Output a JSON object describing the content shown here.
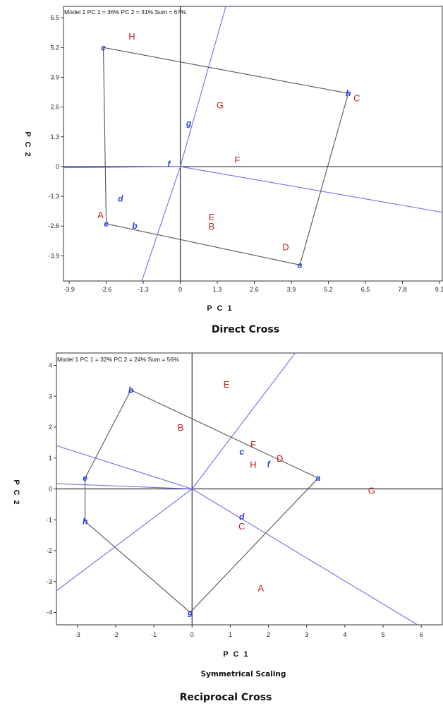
{
  "chart_data": [
    {
      "type": "scatter",
      "header": "Model 1 PC 1 = 36% PC 2 = 31% Sum = 67%",
      "xlabel": "P C 1",
      "ylabel": "P C 2",
      "caption": "Direct Cross",
      "subtitle": "",
      "xlim": [
        -4.1,
        9.2
      ],
      "ylim": [
        -5.0,
        7.0
      ],
      "xticks": [
        "-3.9",
        "-2.6",
        "-1.3",
        "0",
        "1.3",
        "2.6",
        "3.9",
        "5.2",
        "6.5",
        "7.8",
        "9.1"
      ],
      "yticks": [
        "6.5",
        "5.2",
        "3.9",
        "2.6",
        "1.3",
        "0",
        "-1.3",
        "-2.6",
        "-3.9"
      ],
      "series": [
        {
          "points": [
            {
              "label": "H",
              "x": -1.7,
              "y": 5.7
            },
            {
              "label": "C",
              "x": 6.2,
              "y": 3.0
            },
            {
              "label": "G",
              "x": 1.4,
              "y": 2.7
            },
            {
              "label": "F",
              "x": 2.0,
              "y": 0.3
            },
            {
              "label": "A",
              "x": -2.8,
              "y": -2.1
            },
            {
              "label": "E",
              "x": 1.1,
              "y": -2.2
            },
            {
              "label": "B",
              "x": 1.1,
              "y": -2.6
            },
            {
              "label": "D",
              "x": 3.7,
              "y": -3.5
            }
          ]
        },
        {
          "points": [
            {
              "label": "c",
              "x": -2.7,
              "y": 5.2
            },
            {
              "label": "h",
              "x": 5.9,
              "y": 3.2
            },
            {
              "label": "g",
              "x": 0.3,
              "y": 1.9
            },
            {
              "label": "f",
              "x": -0.4,
              "y": 0.1
            },
            {
              "label": "d",
              "x": -2.1,
              "y": -1.4
            },
            {
              "label": "e",
              "x": -2.6,
              "y": -2.5
            },
            {
              "label": "b",
              "x": -1.6,
              "y": -2.6
            },
            {
              "label": "a",
              "x": 4.2,
              "y": -4.3
            }
          ]
        }
      ],
      "polygon": [
        "c",
        "h",
        "a",
        "e",
        "c"
      ],
      "rays": [
        {
          "from": [
            0,
            0
          ],
          "to": [
            -4.1,
            -0.05
          ]
        },
        {
          "from": [
            0,
            0
          ],
          "to": [
            9.2,
            -2.0
          ]
        },
        {
          "from": [
            0,
            0
          ],
          "to": [
            1.6,
            7.0
          ]
        },
        {
          "from": [
            0,
            0
          ],
          "to": [
            -1.35,
            -5.0
          ]
        }
      ]
    },
    {
      "type": "scatter",
      "header": "Model 1 PC 1 = 32% PC 2 = 24% Sum = 56%",
      "xlabel": "P C 1",
      "ylabel": "P C 2",
      "caption": "Reciprocal Cross",
      "subtitle": "Symmetrical Scaling",
      "xlim": [
        -3.55,
        6.55
      ],
      "ylim": [
        -4.4,
        4.4
      ],
      "xticks": [
        "-3",
        "-2",
        "-1",
        "0",
        "1",
        "2",
        "3",
        "4",
        "5",
        "6"
      ],
      "yticks": [
        "4",
        "3",
        "2",
        "1",
        "0",
        "-1",
        "-2",
        "-3",
        "-4"
      ],
      "series": [
        {
          "points": [
            {
              "label": "E",
              "x": 0.9,
              "y": 3.4
            },
            {
              "label": "B",
              "x": -0.3,
              "y": 2.0
            },
            {
              "label": "F",
              "x": 1.6,
              "y": 1.45
            },
            {
              "label": "D",
              "x": 2.3,
              "y": 1.0
            },
            {
              "label": "H",
              "x": 1.6,
              "y": 0.8
            },
            {
              "label": "G",
              "x": 4.7,
              "y": -0.05
            },
            {
              "label": "C",
              "x": 1.3,
              "y": -1.2
            },
            {
              "label": "A",
              "x": 1.8,
              "y": -3.2
            }
          ]
        },
        {
          "points": [
            {
              "label": "b",
              "x": -1.6,
              "y": 3.2
            },
            {
              "label": "c",
              "x": 1.3,
              "y": 1.2
            },
            {
              "label": "f",
              "x": 2.0,
              "y": 0.8
            },
            {
              "label": "a",
              "x": 3.3,
              "y": 0.35
            },
            {
              "label": "e",
              "x": -2.8,
              "y": 0.35
            },
            {
              "label": "d",
              "x": 1.3,
              "y": -0.9
            },
            {
              "label": "h",
              "x": -2.8,
              "y": -1.05
            },
            {
              "label": "g",
              "x": -0.05,
              "y": -4.0
            }
          ]
        }
      ],
      "polygon": [
        "b",
        "a",
        "g",
        "h",
        "e",
        "b"
      ],
      "rays": [
        {
          "from": [
            0,
            0
          ],
          "to": [
            2.7,
            4.4
          ]
        },
        {
          "from": [
            0,
            0
          ],
          "to": [
            -3.55,
            -3.3
          ]
        },
        {
          "from": [
            0,
            0
          ],
          "to": [
            -3.55,
            1.4
          ]
        },
        {
          "from": [
            0,
            0
          ],
          "to": [
            5.9,
            -4.4
          ]
        },
        {
          "from": [
            0,
            0
          ],
          "to": [
            -3.55,
            0.17
          ]
        }
      ]
    }
  ],
  "colors": {
    "treatment": "#c81e1e",
    "vertex": "#1f3fe0",
    "ray": "#6e6ef0",
    "polygon": "#555555",
    "axis": "#333333"
  }
}
